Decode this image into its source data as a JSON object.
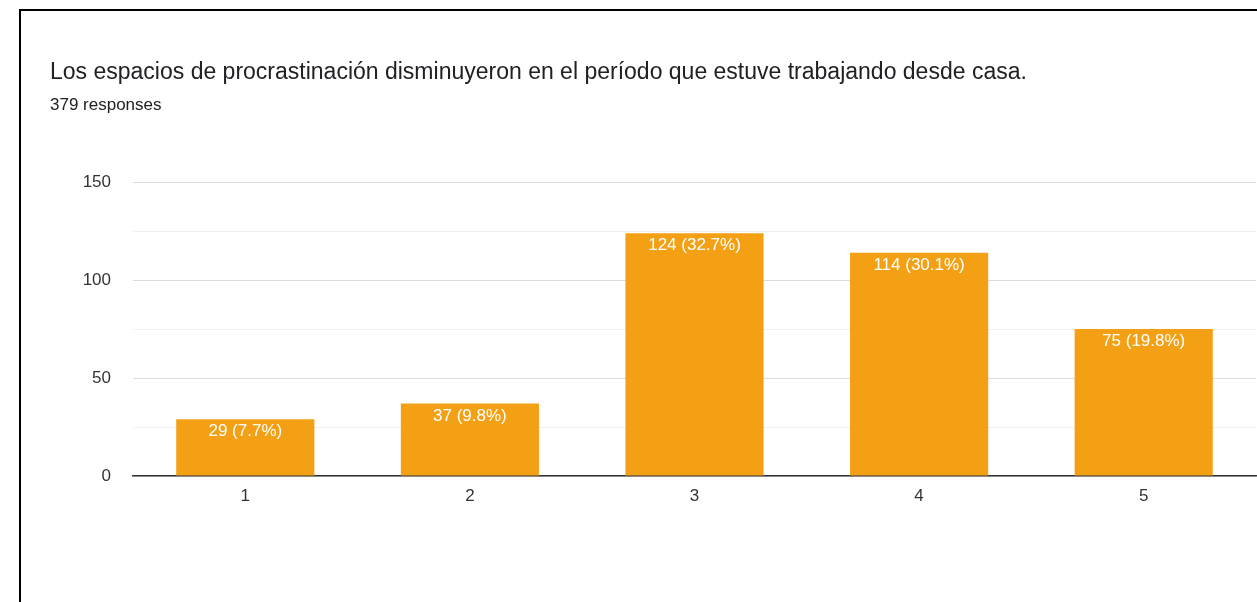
{
  "chart_data": {
    "type": "bar",
    "title": "Los espacios de procrastinación disminuyeron en el período que estuve trabajando desde casa.",
    "subtitle": "379 responses",
    "categories": [
      "1",
      "2",
      "3",
      "4",
      "5"
    ],
    "values": [
      29,
      37,
      124,
      114,
      75
    ],
    "value_labels": [
      "29 (7.7%)",
      "37 (9.8%)",
      "124 (32.7%)",
      "114 (30.1%)",
      "75 (19.8%)"
    ],
    "color": "#f4a015",
    "ylim": [
      0,
      150
    ],
    "yticks": [
      0,
      {
        "value": 25,
        "label": null
      },
      50,
      {
        "value": 75,
        "label": null
      },
      100,
      {
        "value": 125,
        "label": null
      },
      150
    ],
    "grid": "y",
    "legend": false
  }
}
